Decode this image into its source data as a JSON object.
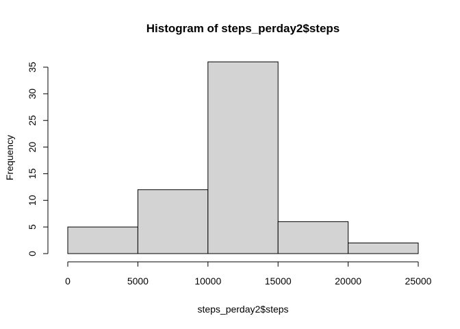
{
  "chart_data": {
    "type": "bar",
    "title": "Histogram of steps_perday2$steps",
    "xlabel": "steps_perday2$steps",
    "ylabel": "Frequency",
    "bins": [
      {
        "from": 0,
        "to": 5000,
        "count": 5
      },
      {
        "from": 5000,
        "to": 10000,
        "count": 12
      },
      {
        "from": 10000,
        "to": 15000,
        "count": 36
      },
      {
        "from": 15000,
        "to": 20000,
        "count": 6
      },
      {
        "from": 20000,
        "to": 25000,
        "count": 2
      }
    ],
    "xlim": [
      0,
      25000
    ],
    "ylim": [
      0,
      36
    ],
    "x_ticks": [
      0,
      5000,
      10000,
      15000,
      20000,
      25000
    ],
    "x_tick_labels": [
      "0",
      "5000",
      "10000",
      "15000",
      "20000",
      "25000"
    ],
    "y_ticks": [
      0,
      5,
      10,
      15,
      20,
      25,
      30,
      35
    ],
    "y_tick_labels": [
      "0",
      "5",
      "10",
      "15",
      "20",
      "25",
      "30",
      "35"
    ],
    "bar_color": "#d3d3d3",
    "border_color": "#000000",
    "grid": false,
    "legend": "none"
  }
}
